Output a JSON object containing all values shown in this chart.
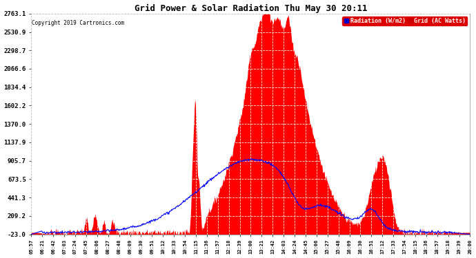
{
  "title": "Grid Power & Solar Radiation Thu May 30 20:11",
  "copyright": "Copyright 2019 Cartronics.com",
  "yticks": [
    -23.0,
    209.2,
    441.3,
    673.5,
    905.7,
    1137.9,
    1370.0,
    1602.2,
    1834.4,
    2066.6,
    2298.7,
    2530.9,
    2763.1
  ],
  "ymin": -23.0,
  "ymax": 2763.1,
  "bg_color": "#ffffff",
  "plot_bg_color": "#ffffff",
  "grid_color": "#c8c8c8",
  "fill_color": "#ff0000",
  "line_color": "#0000ff",
  "xtick_labels": [
    "05:57",
    "06:21",
    "06:42",
    "07:03",
    "07:24",
    "07:45",
    "08:06",
    "08:27",
    "08:48",
    "09:09",
    "09:30",
    "09:51",
    "10:12",
    "10:33",
    "10:54",
    "11:15",
    "11:36",
    "11:57",
    "12:18",
    "12:39",
    "13:00",
    "13:21",
    "13:42",
    "14:03",
    "14:24",
    "14:45",
    "15:06",
    "15:27",
    "15:48",
    "16:09",
    "16:30",
    "16:51",
    "17:12",
    "17:33",
    "17:54",
    "18:15",
    "18:36",
    "18:57",
    "19:18",
    "19:39",
    "20:00"
  ]
}
